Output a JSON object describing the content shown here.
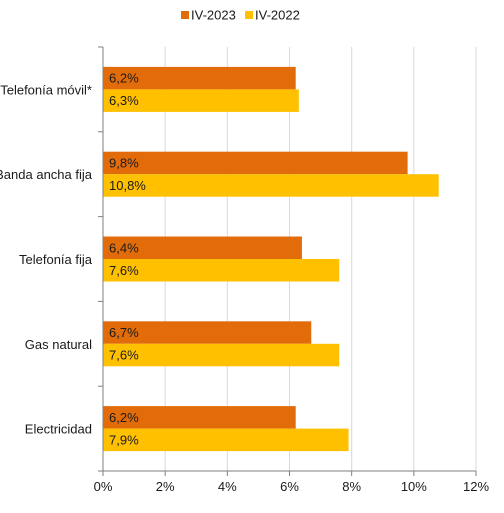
{
  "chart_data": {
    "type": "bar",
    "orientation": "horizontal",
    "categories": [
      "Telefonía móvil*",
      "Banda ancha fija",
      "Telefonía fija",
      "Gas natural",
      "Electricidad"
    ],
    "series": [
      {
        "name": "IV-2023",
        "color": "#E36C0A",
        "values": [
          6.2,
          9.8,
          6.4,
          6.7,
          6.2
        ],
        "labels": [
          "6,2%",
          "9,8%",
          "6,4%",
          "6,7%",
          "6,2%"
        ]
      },
      {
        "name": "IV-2022",
        "color": "#FFC000",
        "values": [
          6.3,
          10.8,
          7.6,
          7.6,
          7.9
        ],
        "labels": [
          "6,3%",
          "10,8%",
          "7,6%",
          "7,6%",
          "7,9%"
        ]
      }
    ],
    "xlim": [
      0,
      12
    ],
    "xticks": [
      0,
      2,
      4,
      6,
      8,
      10,
      12
    ],
    "xtick_labels": [
      "0%",
      "2%",
      "4%",
      "6%",
      "8%",
      "10%",
      "12%"
    ],
    "grid": true,
    "grid_color": "#D9D9D9",
    "legend_position": "top"
  }
}
